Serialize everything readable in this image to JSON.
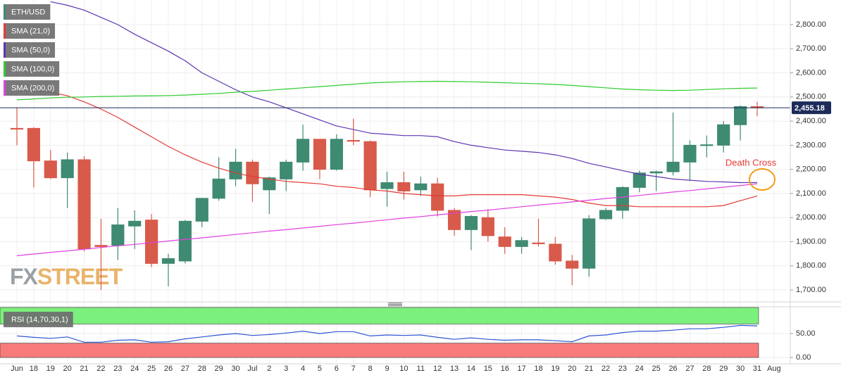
{
  "chart_data": {
    "type": "candlestick",
    "categories": [
      "Jun",
      "18",
      "19",
      "20",
      "21",
      "22",
      "23",
      "24",
      "25",
      "26",
      "27",
      "28",
      "29",
      "30",
      "Jul",
      "2",
      "3",
      "4",
      "5",
      "6",
      "7",
      "8",
      "9",
      "10",
      "11",
      "12",
      "13",
      "14",
      "15",
      "16",
      "17",
      "18",
      "19",
      "20",
      "21",
      "22",
      "23",
      "24",
      "25",
      "26",
      "27",
      "28",
      "29",
      "30",
      "31",
      "Aug"
    ],
    "series": [
      {
        "name": "ETH/USD",
        "up_color": "#3f8a72",
        "down_color": "#d85a4a",
        "open": [
          2370,
          2370,
          2235,
          2165,
          2240,
          1885,
          1885,
          1965,
          1990,
          1810,
          1820,
          1985,
          2080,
          2160,
          2230,
          2115,
          2160,
          2230,
          2325,
          2200,
          2320,
          2315,
          2120,
          2145,
          2115,
          2140,
          2030,
          1950,
          2000,
          1920,
          1880,
          1895,
          1890,
          1820,
          1790,
          1995,
          2030,
          2125,
          2185,
          2190,
          2230,
          2300,
          2300,
          2385,
          2460,
          null
        ],
        "high": [
          2455,
          2375,
          2280,
          2270,
          2255,
          1995,
          2040,
          2030,
          2015,
          1850,
          1990,
          2080,
          2250,
          2285,
          2240,
          2170,
          2240,
          2385,
          2325,
          2345,
          2410,
          2320,
          2190,
          2190,
          2170,
          2165,
          2040,
          2010,
          2035,
          1960,
          1920,
          1995,
          1920,
          1845,
          2010,
          2040,
          2130,
          2195,
          2195,
          2435,
          2320,
          2340,
          2400,
          2465,
          2480,
          null
        ],
        "low": [
          2300,
          2125,
          2160,
          2040,
          1860,
          1700,
          1825,
          1870,
          1795,
          1715,
          1810,
          1960,
          2070,
          2130,
          2065,
          2015,
          2110,
          2195,
          2160,
          2195,
          2300,
          2085,
          2045,
          2075,
          2090,
          2005,
          1925,
          1865,
          1900,
          1850,
          1850,
          1880,
          1805,
          1720,
          1755,
          1990,
          1995,
          2105,
          2110,
          2175,
          2155,
          2250,
          2270,
          2320,
          2420,
          null
        ],
        "close": [
          2368,
          2235,
          2165,
          2240,
          1870,
          1880,
          1970,
          1985,
          1810,
          1830,
          1985,
          2080,
          2160,
          2230,
          2140,
          2165,
          2230,
          2325,
          2200,
          2325,
          2318,
          2115,
          2145,
          2110,
          2140,
          2030,
          1950,
          2005,
          1925,
          1880,
          1905,
          1893,
          1820,
          1790,
          1995,
          2030,
          2125,
          2185,
          2190,
          2230,
          2300,
          2302,
          2385,
          2460,
          2455,
          null
        ]
      },
      {
        "name": "SMA (21,0)",
        "color": "#e53935",
        "values": [
          2525,
          2525,
          2520,
          2505,
          2480,
          2450,
          2415,
          2375,
          2335,
          2295,
          2260,
          2230,
          2205,
          2185,
          2170,
          2160,
          2150,
          2145,
          2140,
          2130,
          2125,
          2115,
          2110,
          2100,
          2095,
          2090,
          2090,
          2095,
          2095,
          2095,
          2095,
          2090,
          2085,
          2075,
          2060,
          2050,
          2050,
          2045,
          2045,
          2045,
          2045,
          2045,
          2050,
          2070,
          2090,
          null
        ]
      },
      {
        "name": "SMA (50,0)",
        "color": "#5e35b1",
        "values": [
          null,
          null,
          2895,
          2880,
          2860,
          2830,
          2800,
          2760,
          2725,
          2690,
          2650,
          2600,
          2565,
          2530,
          2500,
          2480,
          2455,
          2430,
          2405,
          2380,
          2365,
          2350,
          2345,
          2340,
          2340,
          2335,
          2315,
          2300,
          2290,
          2280,
          2275,
          2270,
          2260,
          2245,
          2225,
          2210,
          2195,
          2180,
          2170,
          2160,
          2155,
          2150,
          2148,
          2145,
          2145,
          null
        ]
      },
      {
        "name": "SMA (100,0)",
        "color": "#2ecc2e",
        "values": [
          2488,
          2492,
          2496,
          2499,
          2500,
          2502,
          2503,
          2504,
          2505,
          2506,
          2508,
          2511,
          2515,
          2520,
          2523,
          2528,
          2533,
          2538,
          2543,
          2548,
          2553,
          2558,
          2561,
          2563,
          2564,
          2565,
          2564,
          2563,
          2561,
          2559,
          2557,
          2555,
          2552,
          2548,
          2543,
          2538,
          2533,
          2530,
          2528,
          2527,
          2528,
          2531,
          2534,
          2536,
          2537,
          null
        ]
      },
      {
        "name": "SMA (200,0)",
        "color": "#e040e0",
        "values": [
          1842,
          1849,
          1856,
          1862,
          1869,
          1876,
          1883,
          1889,
          1896,
          1903,
          1910,
          1916,
          1923,
          1930,
          1937,
          1944,
          1950,
          1957,
          1964,
          1971,
          1977,
          1984,
          1991,
          1998,
          2004,
          2011,
          2018,
          2025,
          2031,
          2038,
          2045,
          2052,
          2058,
          2065,
          2072,
          2079,
          2085,
          2092,
          2099,
          2106,
          2112,
          2119,
          2126,
          2133,
          2140,
          null
        ]
      }
    ],
    "ylim": [
      1653.5,
      2902
    ],
    "yticks": [
      {
        "value": 1700,
        "label": "1,700.00"
      },
      {
        "value": 1800,
        "label": "1,800.00"
      },
      {
        "value": 1900,
        "label": "1,900.00"
      },
      {
        "value": 2000,
        "label": "2,000.00"
      },
      {
        "value": 2100,
        "label": "2,100.00"
      },
      {
        "value": 2200,
        "label": "2,200.00"
      },
      {
        "value": 2300,
        "label": "2,300.00"
      },
      {
        "value": 2400,
        "label": "2,400.00"
      },
      {
        "value": 2500,
        "label": "2,500.00"
      },
      {
        "value": 2600,
        "label": "2,600.00"
      },
      {
        "value": 2700,
        "label": "2,700.00"
      },
      {
        "value": 2800,
        "label": "2,800.00"
      }
    ],
    "grid": true,
    "last_price": {
      "value": 2455.18,
      "label": "2,455.18",
      "color": "#1c2b5a"
    },
    "annotations": [
      {
        "text": "Death Cross",
        "color": "#e53935"
      }
    ],
    "watermark": [
      "FX",
      "STREET"
    ],
    "rsi": {
      "name": "RSI (14,70,30,1)",
      "color": "#2f55d4",
      "values": [
        45,
        42,
        40,
        43,
        32,
        32,
        36,
        37,
        32,
        33,
        39,
        43,
        47,
        50,
        46,
        48,
        51,
        55,
        50,
        54,
        54,
        45,
        47,
        46,
        47,
        42,
        38,
        41,
        38,
        36,
        37,
        37,
        35,
        33,
        45,
        47,
        52,
        55,
        55,
        57,
        60,
        60,
        63,
        67,
        66,
        null
      ],
      "ylim": [
        -13.2,
        104.4
      ],
      "yticks": [
        {
          "value": 0,
          "label": "0.00"
        },
        {
          "value": 50,
          "label": "50.00"
        }
      ],
      "overbought": 70,
      "oversold": 30,
      "overbought_color": "#7cf07c",
      "oversold_color": "#f77b7b"
    }
  }
}
